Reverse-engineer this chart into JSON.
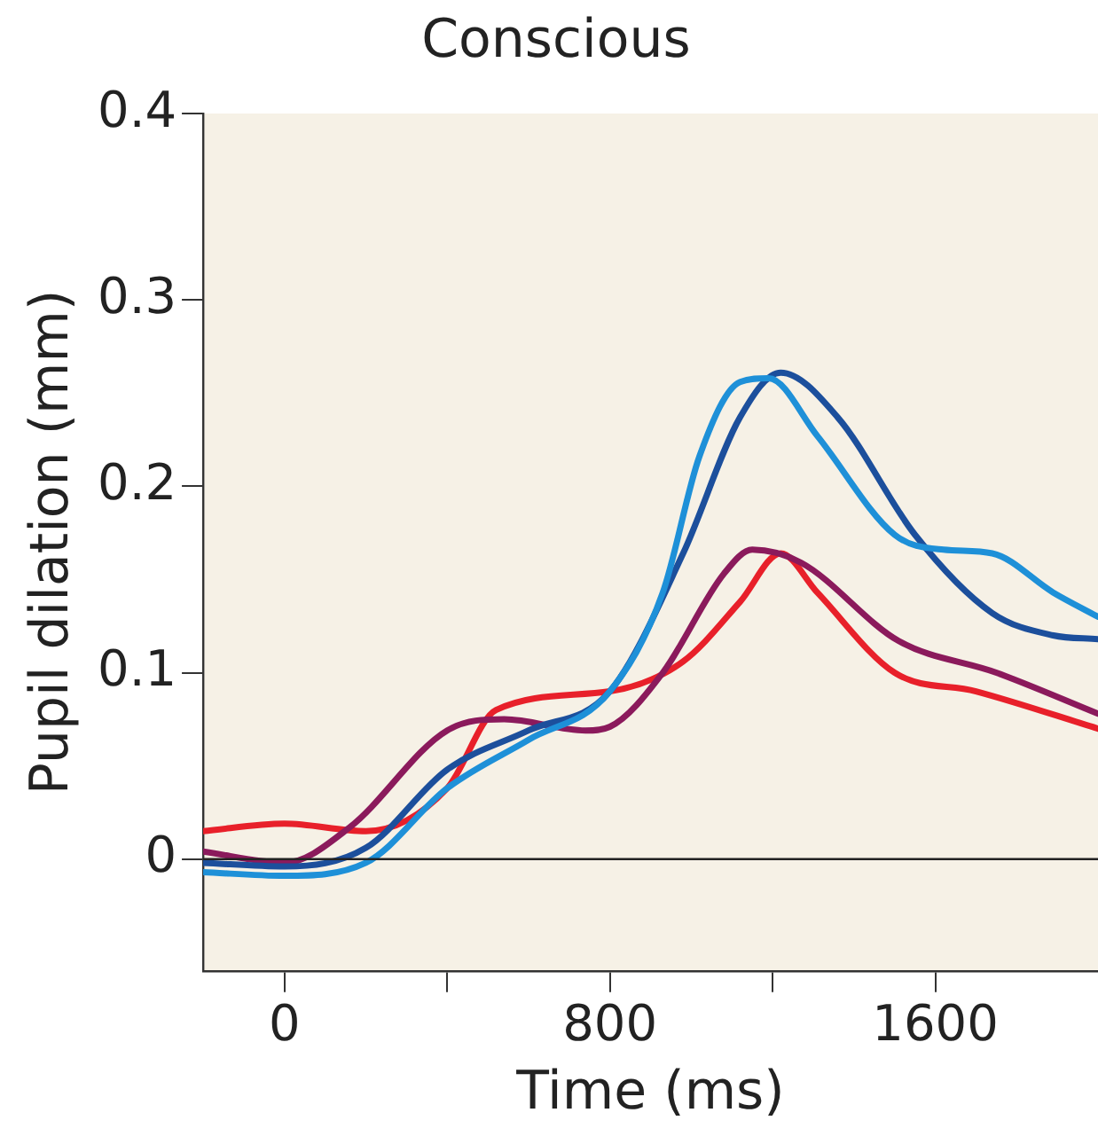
{
  "chart_data": {
    "type": "line",
    "title": "Conscious",
    "xlabel": "Time (ms)",
    "ylabel": "Pupil dilation (mm)",
    "xlim": [
      -200,
      2000
    ],
    "ylim": [
      -0.06,
      0.4
    ],
    "xticks": [
      0,
      {
        "value": 400,
        "label": null
      },
      800,
      {
        "value": 1200,
        "label": null
      },
      1600
    ],
    "yticks": [
      0,
      0.1,
      0.2,
      0.3,
      0.4
    ],
    "grid": false,
    "legend": false,
    "marker": "none",
    "line_style": "solid",
    "ref_lines": [
      {
        "axis": "y",
        "value": 0,
        "color": "#222222"
      }
    ],
    "series": [
      {
        "color": "#1e90d8",
        "x": [
          -200,
          0,
          200,
          400,
          600,
          800,
          930,
          1020,
          1120,
          1190,
          1310,
          1500,
          1620,
          1740,
          1890,
          2000
        ],
        "values": [
          -0.007,
          -0.009,
          -0.002,
          0.038,
          0.064,
          0.09,
          0.143,
          0.216,
          0.256,
          0.258,
          0.227,
          0.174,
          0.166,
          0.164,
          0.143,
          0.13
        ]
      },
      {
        "color": "#1c4f9c",
        "x": [
          -200,
          0,
          200,
          400,
          600,
          800,
          980,
          1120,
          1220,
          1360,
          1550,
          1740,
          1890,
          2000
        ],
        "values": [
          -0.002,
          -0.004,
          0.006,
          0.048,
          0.069,
          0.09,
          0.164,
          0.237,
          0.261,
          0.237,
          0.174,
          0.132,
          0.12,
          0.118
        ]
      },
      {
        "color": "#8b1a5c",
        "x": [
          -200,
          0,
          160,
          400,
          540,
          740,
          800,
          930,
          1080,
          1150,
          1270,
          1510,
          1750,
          2000
        ],
        "values": [
          0.004,
          -0.002,
          0.017,
          0.069,
          0.075,
          0.069,
          0.071,
          0.1,
          0.153,
          0.166,
          0.159,
          0.117,
          0.1,
          0.078
        ]
      },
      {
        "color": "#e8202a",
        "x": [
          -200,
          0,
          200,
          400,
          520,
          800,
          980,
          1120,
          1220,
          1310,
          1500,
          1700,
          2000
        ],
        "values": [
          0.015,
          0.019,
          0.015,
          0.038,
          0.08,
          0.09,
          0.106,
          0.138,
          0.164,
          0.143,
          0.1,
          0.09,
          0.07
        ]
      }
    ]
  }
}
